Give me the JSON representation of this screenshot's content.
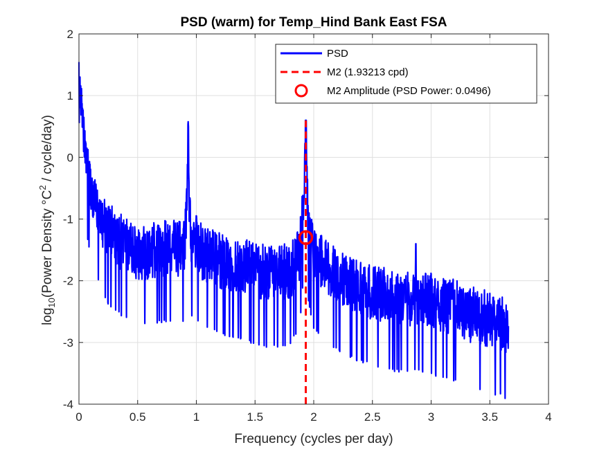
{
  "chart_data": {
    "type": "line",
    "title": "PSD (warm) for Temp_Hind Bank East FSA",
    "xlabel": "Frequency (cycles per day)",
    "ylabel": {
      "prefix": "log",
      "sub": "10",
      "mid": "(Power Density °C",
      "sup": "2",
      "suffix": " / cycle/day)"
    },
    "xlim": [
      0,
      4
    ],
    "ylim": [
      -4,
      2
    ],
    "xticks": [
      0,
      0.5,
      1,
      1.5,
      2,
      2.5,
      3,
      3.5,
      4
    ],
    "xtick_labels": [
      "0",
      "0.5",
      "1",
      "1.5",
      "2",
      "2.5",
      "3",
      "3.5",
      "4"
    ],
    "yticks": [
      -4,
      -3,
      -2,
      -1,
      0,
      1,
      2
    ],
    "ytick_labels": [
      "-4",
      "-3",
      "-2",
      "-1",
      "0",
      "1",
      "2"
    ],
    "grid": true,
    "legend_position": "top-right",
    "series": [
      {
        "name": "PSD",
        "style": "solid",
        "color": "#0000ff",
        "x": [
          0.0,
          0.01,
          0.02,
          0.03,
          0.05,
          0.07,
          0.1,
          0.13,
          0.16,
          0.2,
          0.25,
          0.3,
          0.35,
          0.4,
          0.45,
          0.5,
          0.55,
          0.6,
          0.7,
          0.8,
          0.9,
          0.93,
          0.96,
          1.0,
          1.1,
          1.2,
          1.3,
          1.4,
          1.5,
          1.6,
          1.7,
          1.8,
          1.88,
          1.915,
          1.932,
          1.95,
          1.98,
          2.0,
          2.1,
          2.2,
          2.3,
          2.4,
          2.5,
          2.6,
          2.7,
          2.8,
          2.9,
          3.0,
          3.1,
          3.2,
          3.3,
          3.4,
          3.5,
          3.6,
          3.66
        ],
        "values": [
          1.75,
          1.2,
          0.8,
          0.5,
          0.1,
          -0.2,
          -0.5,
          -0.7,
          -0.9,
          -1.05,
          -1.2,
          -1.3,
          -1.38,
          -1.45,
          -1.5,
          -1.55,
          -1.55,
          -1.55,
          -1.5,
          -1.5,
          -1.5,
          -0.3,
          -1.4,
          -1.5,
          -1.6,
          -1.7,
          -1.75,
          -1.8,
          -1.85,
          -1.9,
          -1.9,
          -1.85,
          -1.6,
          -0.7,
          0.6,
          -1.1,
          -1.45,
          -1.6,
          -1.8,
          -1.95,
          -2.05,
          -2.15,
          -2.2,
          -2.25,
          -2.3,
          -2.3,
          -2.3,
          -2.35,
          -2.4,
          -2.45,
          -2.55,
          -2.6,
          -2.65,
          -2.7,
          -2.8
        ]
      },
      {
        "name": "M2 (1.93213 cpd)",
        "style": "dashed",
        "color": "#ff0000",
        "x": [
          1.93213,
          1.93213
        ],
        "values": [
          -4,
          0.6
        ]
      },
      {
        "name": "M2 Amplitude (PSD Power: 0.0496)",
        "style": "marker-circle",
        "color": "#ff0000",
        "x": [
          1.93213
        ],
        "values": [
          -1.3
        ]
      }
    ]
  }
}
